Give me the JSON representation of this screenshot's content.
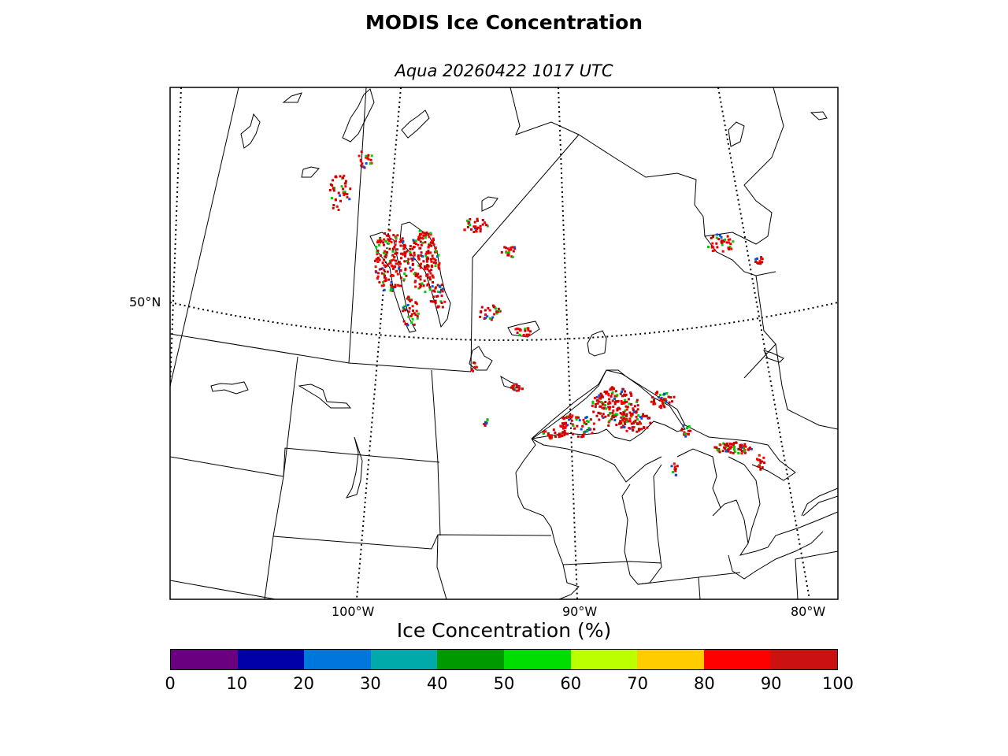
{
  "title": "MODIS Ice Concentration",
  "subtitle": "Aqua 20260422 1017 UTC",
  "map": {
    "lat_labels": [
      "50°N"
    ],
    "lon_labels": [
      "100°W",
      "90°W",
      "80°W"
    ],
    "ice_colors": {
      "high": "#cc0000",
      "mid": "#ff0000",
      "low": "#00cc00",
      "blue": "#0055dd"
    }
  },
  "colorbar": {
    "title": "Ice Concentration (%)",
    "colors": [
      "#6a0080",
      "#0000a8",
      "#0077dd",
      "#00aaaa",
      "#009900",
      "#00dd00",
      "#bbff00",
      "#ffcc00",
      "#ff0000",
      "#cc1111"
    ],
    "ticks": [
      "0",
      "10",
      "20",
      "30",
      "40",
      "50",
      "60",
      "70",
      "80",
      "90",
      "100"
    ]
  }
}
